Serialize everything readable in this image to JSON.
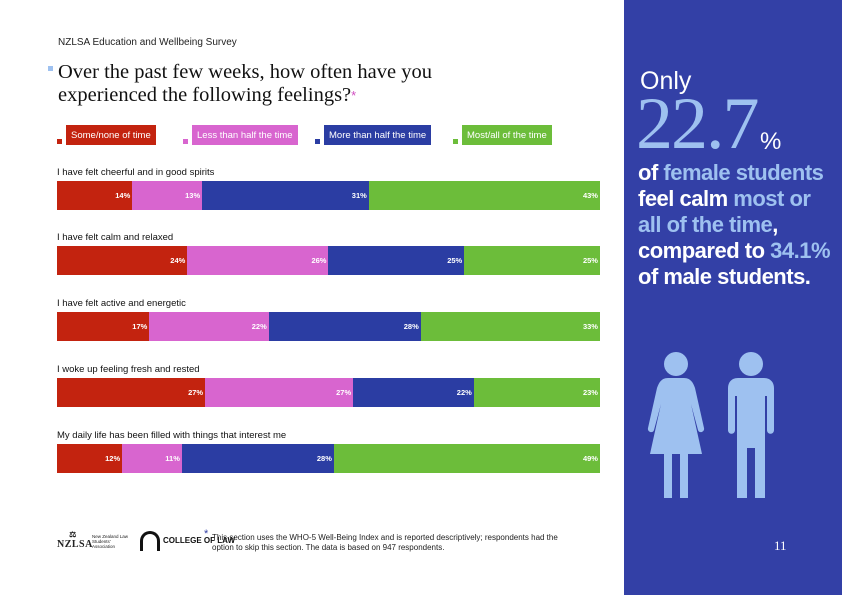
{
  "survey_name": "NZLSA Education and Wellbeing Survey",
  "title": "Over the past few weeks, how often have you experienced the following feelings?",
  "title_asterisk": "*",
  "colors": {
    "some_none": "#c3230f",
    "less_than_half": "#d865cf",
    "more_than_half": "#2b3da3",
    "most_all": "#6cbd3a",
    "highlight": "#9ec1f0",
    "panel": "#3340a6"
  },
  "chart_data": {
    "type": "bar",
    "orientation": "horizontal-stacked-100",
    "series": [
      {
        "name": "Some/none of time",
        "color": "#c3230f",
        "values": [
          14,
          24,
          17,
          27,
          12
        ]
      },
      {
        "name": "Less than half the time",
        "color": "#d865cf",
        "values": [
          13,
          26,
          22,
          27,
          11
        ]
      },
      {
        "name": "More than half the time",
        "color": "#2b3da3",
        "values": [
          31,
          25,
          28,
          22,
          28
        ]
      },
      {
        "name": "Most/all of the time",
        "color": "#6cbd3a",
        "values": [
          43,
          25,
          33,
          23,
          49
        ]
      }
    ],
    "categories": [
      "I have felt cheerful and in good spirits",
      "I have felt calm and relaxed",
      "I have felt active and energetic",
      "I woke up feeling fresh and rested",
      "My daily life has been filled with things that interest me"
    ],
    "data_labels": [
      [
        "14%",
        "13%",
        "31%",
        "43%"
      ],
      [
        "24%",
        "26%",
        "25%",
        "25%"
      ],
      [
        "17%",
        "22%",
        "28%",
        "33%"
      ],
      [
        "27%",
        "27%",
        "22%",
        "23%"
      ],
      [
        "12%",
        "11%",
        "28%",
        "49%"
      ]
    ]
  },
  "footer": {
    "org1_mark": "NZLSA",
    "org1_name": "New Zealand Law Students' Association",
    "org2_name": "COLLEGE OF LAW",
    "footnote_asterisk": "*",
    "footnote": "This section uses the WHO-5 Well-Being Index and is reported descriptively; respondents had the option to skip this section. The data is based on 947 respondents."
  },
  "side_panel": {
    "only": "Only",
    "big_number": "22.7",
    "percent_sign": "%",
    "text_parts": [
      {
        "t": "of ",
        "hl": false
      },
      {
        "t": "female students",
        "hl": true
      },
      {
        "t": " feel calm ",
        "hl": false
      },
      {
        "t": "most or all of the time",
        "hl": true
      },
      {
        "t": ", compared to ",
        "hl": false
      },
      {
        "t": "34.1%",
        "hl": true
      },
      {
        "t": " of male students.",
        "hl": false
      }
    ],
    "figures": [
      "female-figure-icon",
      "male-figure-icon"
    ],
    "page_number": "11"
  }
}
